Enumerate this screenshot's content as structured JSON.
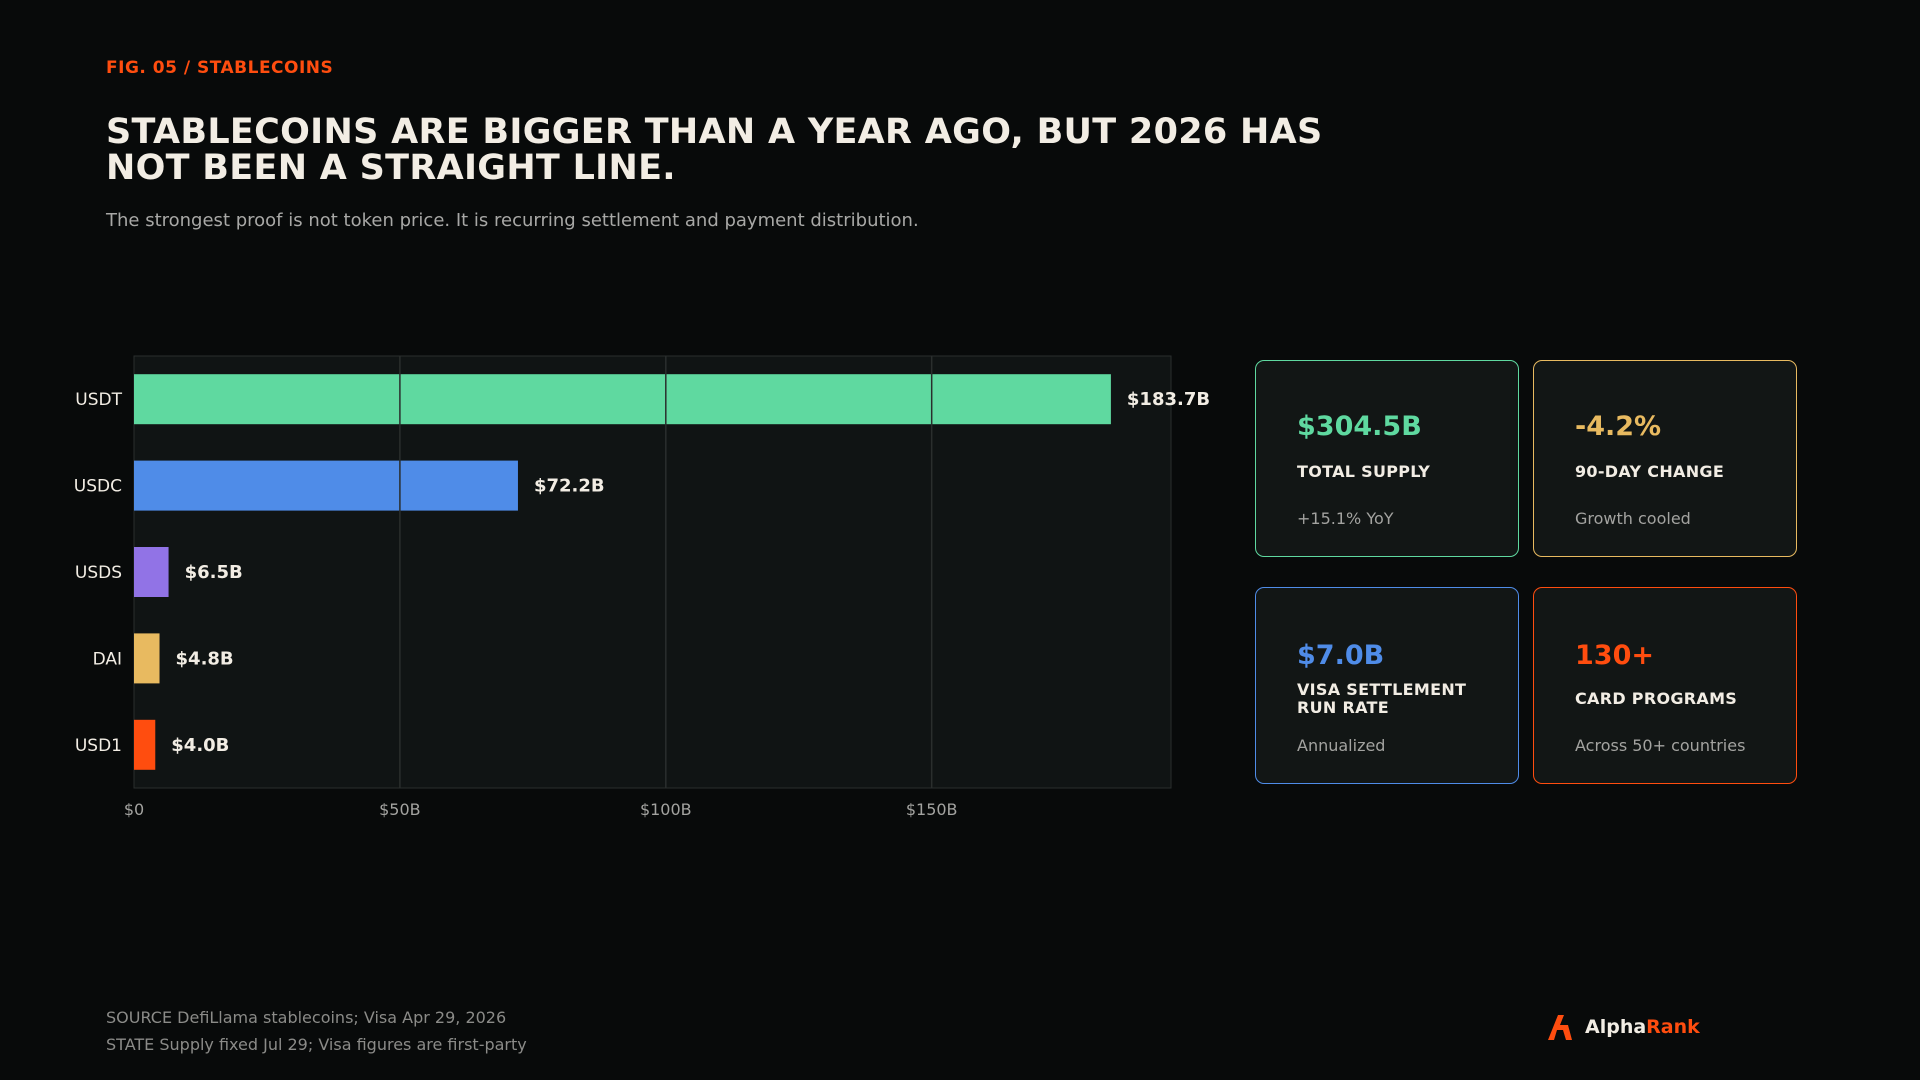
{
  "header": {
    "eyebrow": "FIG. 05 / STABLECOINS",
    "title": "STABLECOINS ARE BIGGER THAN A YEAR AGO, BUT 2026 HAS NOT BEEN A STRAIGHT LINE.",
    "subtitle": "The strongest proof is not token price. It is recurring settlement and payment distribution."
  },
  "chart_data": {
    "type": "bar",
    "orientation": "horizontal",
    "categories": [
      "USDT",
      "USDC",
      "USDS",
      "DAI",
      "USD1"
    ],
    "values": [
      183.7,
      72.2,
      6.5,
      4.8,
      4.0
    ],
    "value_labels": [
      "$183.7B",
      "$72.2B",
      "$6.5B",
      "$4.8B",
      "$4.0B"
    ],
    "colors": [
      "#5fd9a0",
      "#4f8ce8",
      "#9173e6",
      "#e8ba60",
      "#ff4d0f"
    ],
    "xlim": [
      0,
      195
    ],
    "xticks": [
      0,
      50,
      100,
      150
    ],
    "xtick_labels": [
      "$0",
      "$50B",
      "$100B",
      "$150B"
    ],
    "grid": true,
    "title": "",
    "xlabel": "",
    "ylabel": ""
  },
  "cards": [
    {
      "value": "$304.5B",
      "label": "TOTAL SUPPLY",
      "note": "+15.1% YoY",
      "color": "#5fd9a0"
    },
    {
      "value": "-4.2%",
      "label": "90-DAY CHANGE",
      "note": "Growth cooled",
      "color": "#e8ba60"
    },
    {
      "value": "$7.0B",
      "label": "VISA SETTLEMENT RUN RATE",
      "note": "Annualized",
      "color": "#4f8ce8"
    },
    {
      "value": "130+",
      "label": "CARD PROGRAMS",
      "note": "Across 50+ countries",
      "color": "#ff4d0f"
    }
  ],
  "footer": {
    "source": "SOURCE  DefiLlama stablecoins; Visa Apr 29, 2026",
    "state": "STATE  Supply fixed Jul 29; Visa figures are first-party"
  },
  "brand": {
    "part1": "Alpha",
    "part2": "Rank",
    "icon": "alpharank-logo-icon"
  }
}
